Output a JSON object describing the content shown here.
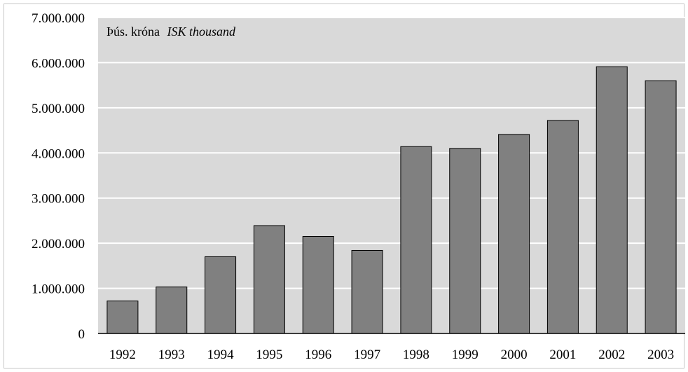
{
  "chart_data": {
    "type": "bar",
    "unit_label": "Þús. króna",
    "unit_label_en": "ISK thousand",
    "categories": [
      "1992",
      "1993",
      "1994",
      "1995",
      "1996",
      "1997",
      "1998",
      "1999",
      "2000",
      "2001",
      "2002",
      "2003"
    ],
    "values": [
      720000,
      1030000,
      1700000,
      2390000,
      2150000,
      1840000,
      4140000,
      4100000,
      4410000,
      4720000,
      5910000,
      5600000
    ],
    "ylim": [
      0,
      7000000
    ],
    "yticks": [
      0,
      1000000,
      2000000,
      3000000,
      4000000,
      5000000,
      6000000,
      7000000
    ],
    "ytick_labels": [
      "0",
      "1.000.000",
      "2.000.000",
      "3.000.000",
      "4.000.000",
      "5.000.000",
      "6.000.000",
      "7.000.000"
    ],
    "grid": true,
    "colors": {
      "plot_background": "#d9d9d9",
      "bar": "#808080",
      "bar_edge": "#000000",
      "grid": "#ffffff"
    }
  }
}
